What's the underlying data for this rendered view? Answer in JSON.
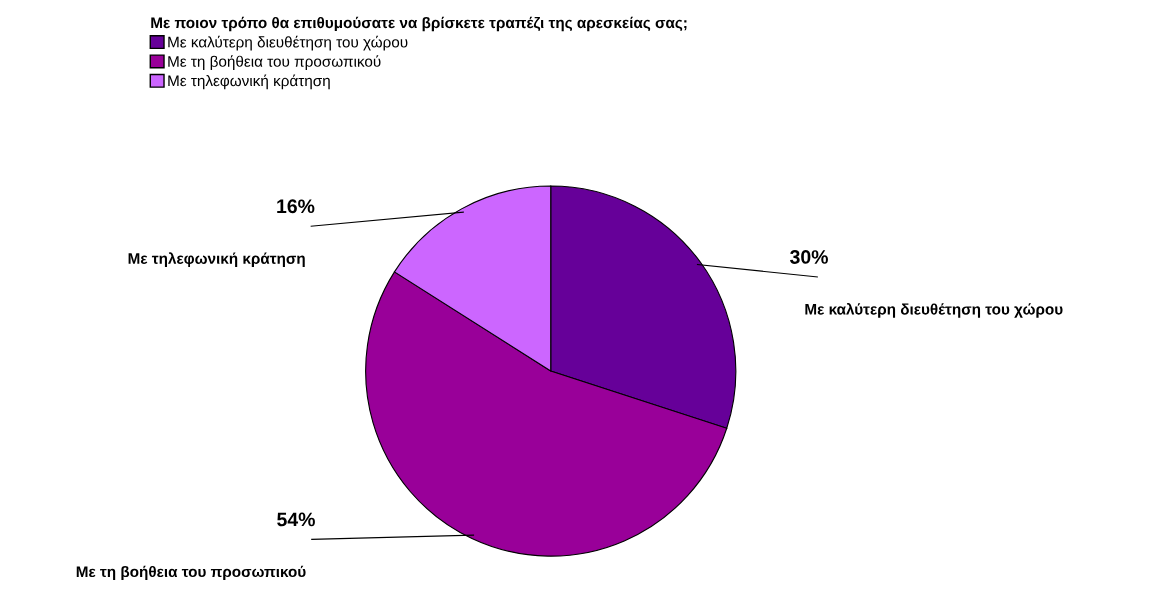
{
  "chart_data": {
    "type": "pie",
    "legend_title": "Με ποιον τρόπο θα επιθυμούσατε να βρίσκετε τραπέζι της αρεσκείας σας;",
    "categories": [
      "Με καλύτερη διευθέτηση του χώρου",
      "Με τη βοήθεια του προσωπικού",
      "Με τηλεφωνική κράτηση"
    ],
    "values": [
      30,
      54,
      16
    ],
    "colors": [
      "#660099",
      "#990099",
      "#cc66ff"
    ],
    "value_labels": [
      "30%",
      "54%",
      "16%"
    ],
    "legend": "top left"
  }
}
